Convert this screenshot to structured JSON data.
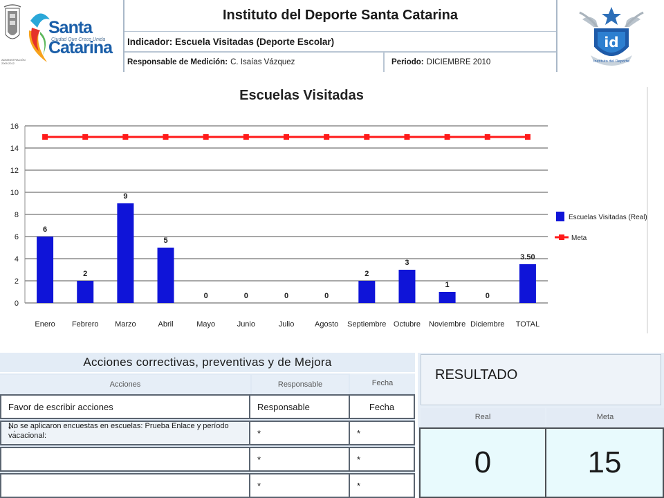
{
  "header": {
    "institute_title": "Instituto del Deporte Santa Catarina",
    "indicator": "Indicador: Escuela Visitadas (Deporte Escolar)",
    "responsable_label": "Responsable de Medición:",
    "responsable_value": "C. Isaías Vázquez",
    "periodo_label": "Periodo:",
    "periodo_value": "DICIEMBRE 2010",
    "brand_name": "Santa Catarina",
    "brand_tagline": "Ciudad Que Crece Unida",
    "crest_caption": "ADMINISTRACIÓN 2009 2012",
    "id_logo_text": "id",
    "id_logo_caption": "Instituto del Deporte"
  },
  "chart_data": {
    "type": "bar",
    "title": "Escuelas Visitadas",
    "categories": [
      "Enero",
      "Febrero",
      "Marzo",
      "Abril",
      "Mayo",
      "Junio",
      "Julio",
      "Agosto",
      "Septiembre",
      "Octubre",
      "Noviembre",
      "Diciembre",
      "TOTAL"
    ],
    "series": [
      {
        "name": "Escuelas Visitadas (Real)",
        "type": "bar",
        "values": [
          6,
          2,
          9,
          5,
          0,
          0,
          0,
          0,
          2,
          3,
          1,
          0,
          3.5
        ],
        "labels": [
          "6",
          "2",
          "9",
          "5",
          "0",
          "0",
          "0",
          "0",
          "2",
          "3",
          "1",
          "0",
          "3.50"
        ],
        "color": "#0f14d8"
      },
      {
        "name": "Meta",
        "type": "line",
        "values": [
          15,
          15,
          15,
          15,
          15,
          15,
          15,
          15,
          15,
          15,
          15,
          15,
          15
        ],
        "color": "#ff1a1a"
      }
    ],
    "ylim": [
      0,
      16
    ],
    "yticks": [
      0,
      2,
      4,
      6,
      8,
      10,
      12,
      14,
      16
    ],
    "grid": true,
    "legend_position": "right"
  },
  "acciones": {
    "title": "Acciones correctivas, preventivas y de Mejora",
    "col_acciones": "Acciones",
    "col_responsable": "Responsable",
    "col_fecha": "Fecha",
    "rows": [
      {
        "accion": "Favor de escribir acciones",
        "responsable": "Responsable",
        "fecha": "Fecha"
      },
      {
        "accion": "No se aplicaron encuestas en escuelas: Prueba Enlace y período vacacional:",
        "bullet": "* :",
        "responsable": "*",
        "fecha": "*"
      },
      {
        "accion": "",
        "responsable": "*",
        "fecha": "*"
      },
      {
        "accion": "",
        "responsable": "*",
        "fecha": "*"
      }
    ]
  },
  "resultado": {
    "title": "RESULTADO",
    "real_label": "Real",
    "meta_label": "Meta",
    "real_value": "0",
    "meta_value": "15"
  }
}
